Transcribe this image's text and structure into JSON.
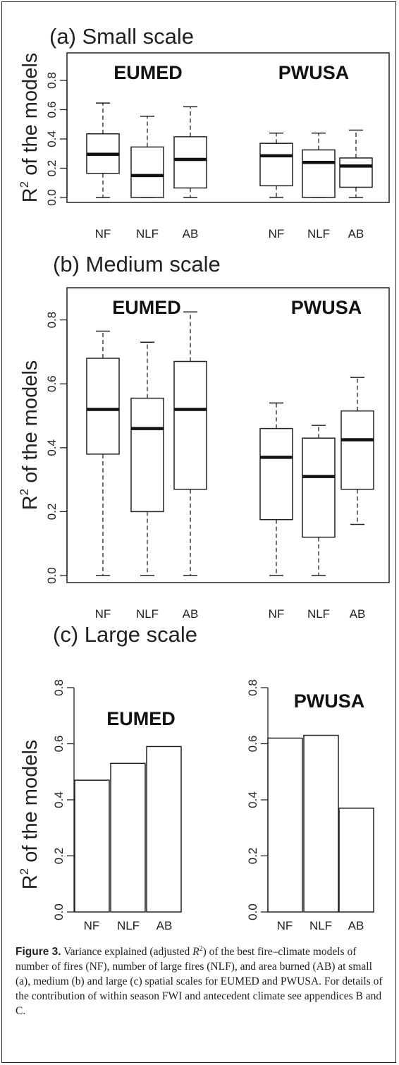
{
  "caption": {
    "label": "Figure 3.",
    "p1": " Variance explained (adjusted ",
    "r": "R",
    "sup": "2",
    "p2": ") of the best fire–climate models of number of fires (NF), number of large fires (NLF), and area burned (AB) at small (a), medium (b) and large (c) spatial scales for EUMED and PWUSA. For details of the contribution of within season FWI and antecedent climate see appendices B and C."
  },
  "chart_data": [
    {
      "type": "box",
      "title": "(a) Small scale",
      "ylabel": "R",
      "ylabel_sup": "2",
      "ylabel_rest": " of the models",
      "ylim": [
        0,
        0.9
      ],
      "yticks": [
        "0.0",
        "0.2",
        "0.4",
        "0.6",
        "0.8"
      ],
      "groups": [
        {
          "name": "EUMED",
          "boxes": [
            {
              "label": "NF",
              "min": 0.0,
              "q1": 0.165,
              "median": 0.295,
              "q3": 0.435,
              "max": 0.645
            },
            {
              "label": "NLF",
              "min": 0.0,
              "q1": 0.0,
              "median": 0.15,
              "q3": 0.345,
              "max": 0.555
            },
            {
              "label": "AB",
              "min": 0.0,
              "q1": 0.065,
              "median": 0.26,
              "q3": 0.415,
              "max": 0.62
            }
          ]
        },
        {
          "name": "PWUSA",
          "boxes": [
            {
              "label": "NF",
              "min": 0.0,
              "q1": 0.08,
              "median": 0.285,
              "q3": 0.37,
              "max": 0.44
            },
            {
              "label": "NLF",
              "min": 0.0,
              "q1": 0.0,
              "median": 0.24,
              "q3": 0.325,
              "max": 0.44
            },
            {
              "label": "AB",
              "min": 0.0,
              "q1": 0.07,
              "median": 0.215,
              "q3": 0.27,
              "max": 0.46
            }
          ]
        }
      ]
    },
    {
      "type": "box",
      "title": "(b) Medium scale",
      "ylabel": "R",
      "ylabel_sup": "2",
      "ylabel_rest": " of the models",
      "ylim": [
        0,
        0.87
      ],
      "yticks": [
        "0.0",
        "0.2",
        "0.4",
        "0.6",
        "0.8"
      ],
      "groups": [
        {
          "name": "EUMED",
          "boxes": [
            {
              "label": "NF",
              "min": 0.0,
              "q1": 0.38,
              "median": 0.52,
              "q3": 0.68,
              "max": 0.765
            },
            {
              "label": "NLF",
              "min": 0.0,
              "q1": 0.2,
              "median": 0.46,
              "q3": 0.555,
              "max": 0.73
            },
            {
              "label": "AB",
              "min": 0.0,
              "q1": 0.27,
              "median": 0.52,
              "q3": 0.67,
              "max": 0.825
            }
          ]
        },
        {
          "name": "PWUSA",
          "boxes": [
            {
              "label": "NF",
              "min": 0.0,
              "q1": 0.175,
              "median": 0.37,
              "q3": 0.46,
              "max": 0.54
            },
            {
              "label": "NLF",
              "min": 0.0,
              "q1": 0.12,
              "median": 0.31,
              "q3": 0.43,
              "max": 0.47
            },
            {
              "label": "AB",
              "min": 0.16,
              "q1": 0.27,
              "median": 0.425,
              "q3": 0.515,
              "max": 0.62
            }
          ]
        }
      ]
    },
    {
      "type": "bar",
      "title": "(c) Large scale",
      "ylabel": "R",
      "ylabel_sup": "2",
      "ylabel_rest": " of the models",
      "ylim": [
        0,
        0.8
      ],
      "yticks": [
        "0.0",
        "0.2",
        "0.4",
        "0.6",
        "0.8"
      ],
      "panels": [
        {
          "name": "EUMED",
          "categories": [
            "NF",
            "NLF",
            "AB"
          ],
          "values": [
            0.47,
            0.53,
            0.59
          ]
        },
        {
          "name": "PWUSA",
          "categories": [
            "NF",
            "NLF",
            "AB"
          ],
          "values": [
            0.62,
            0.63,
            0.37
          ]
        }
      ]
    }
  ]
}
